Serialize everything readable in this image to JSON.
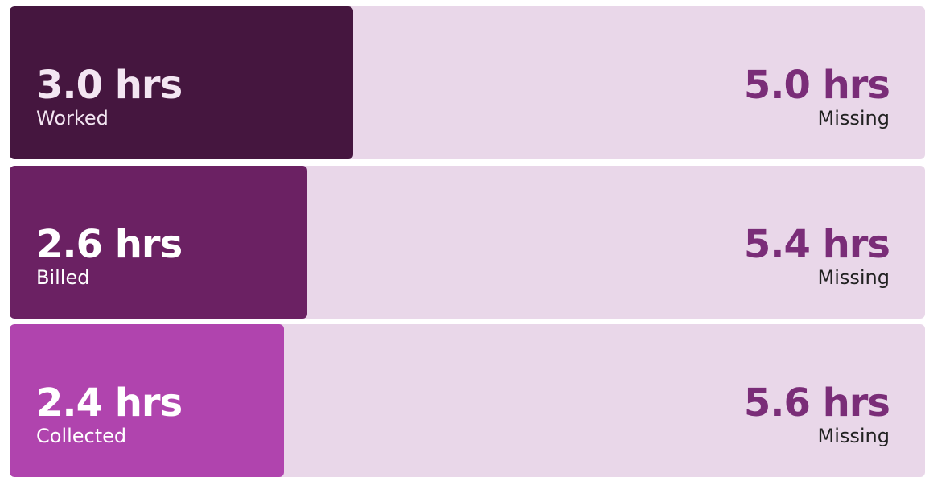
{
  "rows": [
    {
      "done": {
        "value": 3.0,
        "label": "3.0 hrs"
      },
      "done_label": "Worked",
      "missing": {
        "value": 5.0,
        "label": "5.0 hrs"
      },
      "missing_label": "Missing",
      "color": "#45163f",
      "text_color": "#f3e6f2"
    },
    {
      "done": {
        "value": 2.6,
        "label": "2.6 hrs"
      },
      "done_label": "Billed",
      "missing": {
        "value": 5.4,
        "label": "5.4 hrs"
      },
      "missing_label": "Missing",
      "color": "#6b2163",
      "text_color": "#ffffff"
    },
    {
      "done": {
        "value": 2.4,
        "label": "2.4 hrs"
      },
      "done_label": "Collected",
      "missing": {
        "value": 5.6,
        "label": "5.6 hrs"
      },
      "missing_label": "Missing",
      "color": "#b044ae",
      "text_color": "#ffffff"
    }
  ]
}
